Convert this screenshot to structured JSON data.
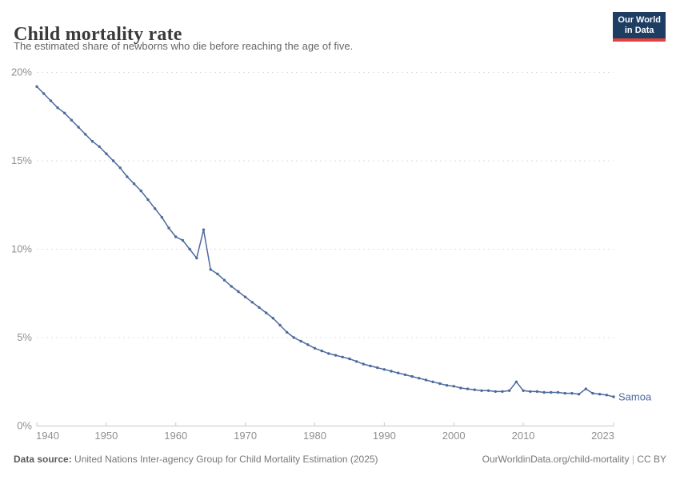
{
  "header": {
    "title": "Child mortality rate",
    "subtitle": "The estimated share of newborns who die before reaching the age of five.",
    "logo": {
      "line1": "Our World",
      "line2": "in Data",
      "bg_color": "#1d3d63",
      "accent_color": "#e2413e"
    }
  },
  "chart_data": {
    "type": "line",
    "title": "Child mortality rate",
    "xlabel": "",
    "ylabel": "",
    "grid": "horizontal-dashed",
    "legend_position": "end-of-line-label",
    "xlim": [
      1940,
      2023
    ],
    "ylim": [
      0,
      20
    ],
    "x_ticks": [
      1940,
      1950,
      1960,
      1970,
      1980,
      1990,
      2000,
      2010,
      2023
    ],
    "y_ticks": [
      {
        "value": 0,
        "label": "0%"
      },
      {
        "value": 5,
        "label": "5%"
      },
      {
        "value": 10,
        "label": "10%"
      },
      {
        "value": 15,
        "label": "15%"
      },
      {
        "value": 20,
        "label": "20%"
      }
    ],
    "x": [
      1940,
      1941,
      1942,
      1943,
      1944,
      1945,
      1946,
      1947,
      1948,
      1949,
      1950,
      1951,
      1952,
      1953,
      1954,
      1955,
      1956,
      1957,
      1958,
      1959,
      1960,
      1961,
      1962,
      1963,
      1964,
      1965,
      1966,
      1967,
      1968,
      1969,
      1970,
      1971,
      1972,
      1973,
      1974,
      1975,
      1976,
      1977,
      1978,
      1979,
      1980,
      1981,
      1982,
      1983,
      1984,
      1985,
      1986,
      1987,
      1988,
      1989,
      1990,
      1991,
      1992,
      1993,
      1994,
      1995,
      1996,
      1997,
      1998,
      1999,
      2000,
      2001,
      2002,
      2003,
      2004,
      2005,
      2006,
      2007,
      2008,
      2009,
      2010,
      2011,
      2012,
      2013,
      2014,
      2015,
      2016,
      2017,
      2018,
      2019,
      2020,
      2021,
      2022,
      2023
    ],
    "series": [
      {
        "name": "Samoa",
        "color": "#4C6A9C",
        "values": [
          19.2,
          18.8,
          18.4,
          18.0,
          17.7,
          17.3,
          16.9,
          16.5,
          16.1,
          15.8,
          15.4,
          15.0,
          14.6,
          14.1,
          13.7,
          13.3,
          12.8,
          12.3,
          11.8,
          11.2,
          10.7,
          10.5,
          10.0,
          9.5,
          11.1,
          8.85,
          8.6,
          8.25,
          7.9,
          7.6,
          7.3,
          7.0,
          6.7,
          6.4,
          6.1,
          5.7,
          5.3,
          5.0,
          4.8,
          4.6,
          4.4,
          4.25,
          4.1,
          4.0,
          3.9,
          3.8,
          3.65,
          3.5,
          3.4,
          3.3,
          3.2,
          3.1,
          3.0,
          2.9,
          2.8,
          2.7,
          2.6,
          2.5,
          2.4,
          2.3,
          2.25,
          2.15,
          2.1,
          2.05,
          2.0,
          2.0,
          1.95,
          1.95,
          2.0,
          2.5,
          2.0,
          1.95,
          1.95,
          1.9,
          1.9,
          1.9,
          1.85,
          1.85,
          1.8,
          2.1,
          1.85,
          1.8,
          1.75,
          1.65
        ]
      }
    ]
  },
  "footer": {
    "source_label": "Data source:",
    "source_text": "United Nations Inter-agency Group for Child Mortality Estimation (2025)",
    "link_text": "OurWorldinData.org/child-mortality",
    "separator": "|",
    "license": "CC BY"
  }
}
